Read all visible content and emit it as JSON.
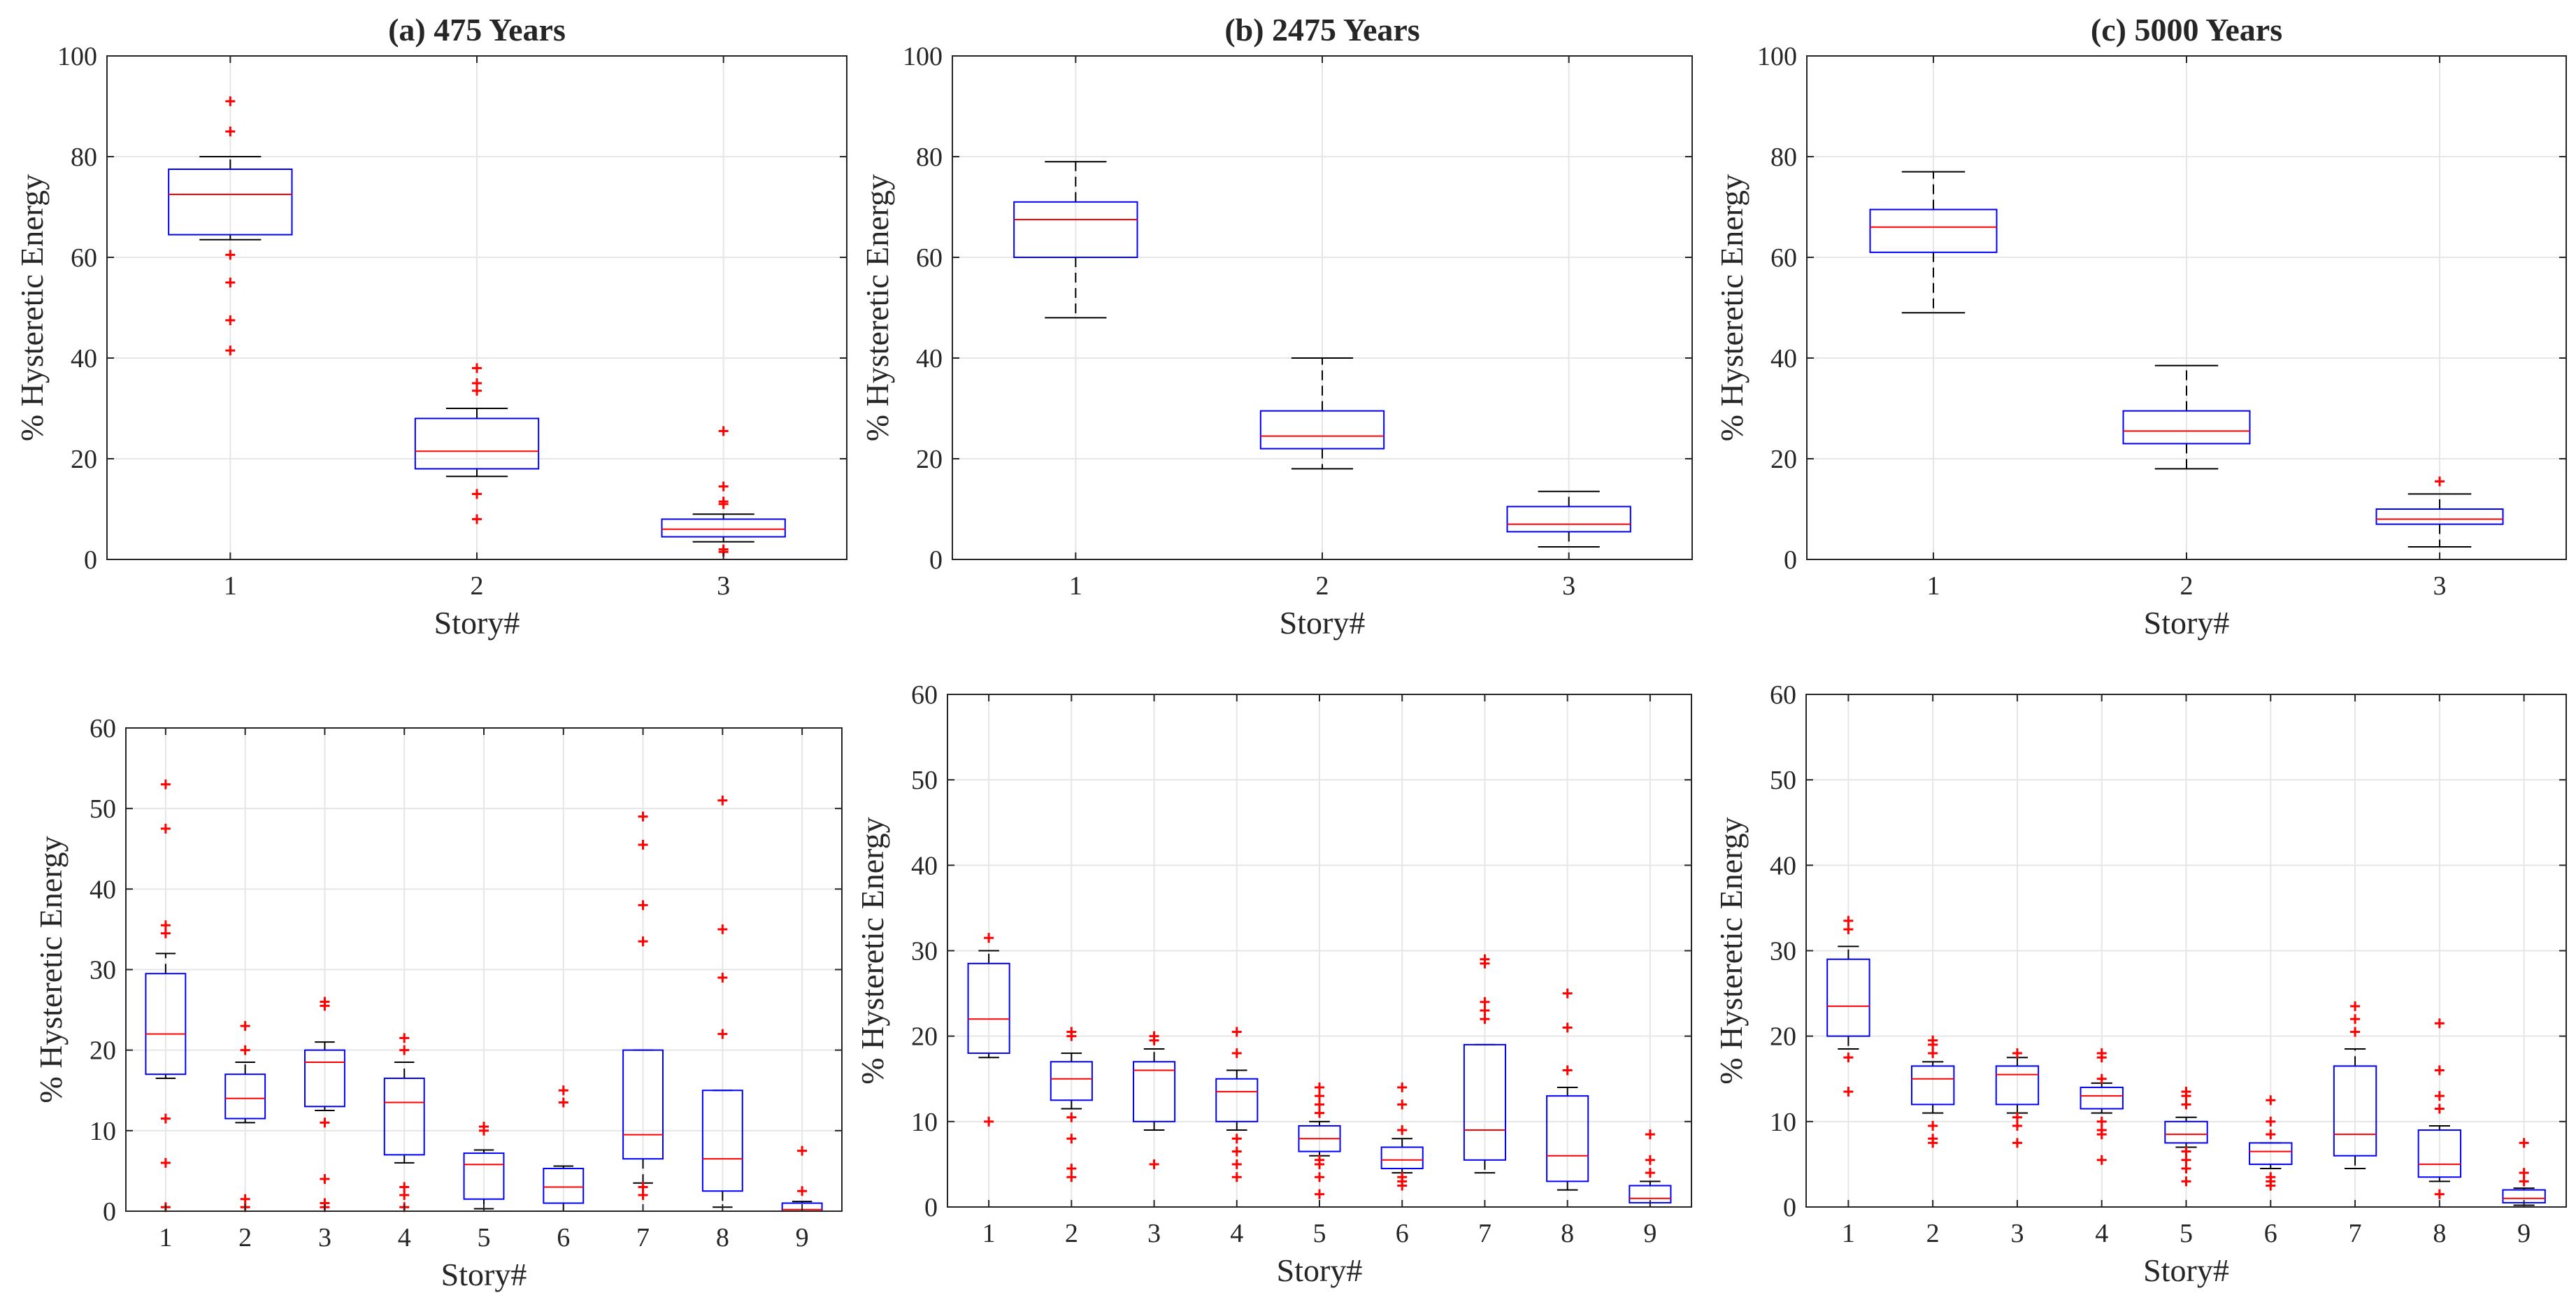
{
  "charts": [
    {
      "title": "(a) 475 Years",
      "xlabel": "Story#",
      "ylabel": "% Hysteretic Energy",
      "ylim": [
        0,
        100
      ],
      "yticks": [
        0,
        20,
        40,
        60,
        80,
        100
      ],
      "categories": [
        "1",
        "2",
        "3"
      ],
      "boxes": [
        {
          "q1": 64.5,
          "median": 72.5,
          "q3": 77.5,
          "wlo": 63.5,
          "whi": 80,
          "outliers": [
            41.5,
            47.5,
            55,
            60.5,
            85,
            91
          ]
        },
        {
          "q1": 18,
          "median": 21.5,
          "q3": 28,
          "wlo": 16.5,
          "whi": 30,
          "outliers": [
            8,
            13,
            33.5,
            35,
            38
          ]
        },
        {
          "q1": 4.5,
          "median": 6,
          "q3": 8,
          "wlo": 3.5,
          "whi": 9,
          "outliers": [
            1.5,
            2,
            11,
            11.5,
            14.5,
            25.5
          ]
        }
      ]
    },
    {
      "title": "(b) 2475 Years",
      "xlabel": "Story#",
      "ylabel": "% Hysteretic Energy",
      "ylim": [
        0,
        100
      ],
      "yticks": [
        0,
        20,
        40,
        60,
        80,
        100
      ],
      "categories": [
        "1",
        "2",
        "3"
      ],
      "boxes": [
        {
          "q1": 60,
          "median": 67.5,
          "q3": 71,
          "wlo": 48,
          "whi": 79,
          "outliers": []
        },
        {
          "q1": 22,
          "median": 24.5,
          "q3": 29.5,
          "wlo": 18,
          "whi": 40,
          "outliers": []
        },
        {
          "q1": 5.5,
          "median": 7,
          "q3": 10.5,
          "wlo": 2.5,
          "whi": 13.5,
          "outliers": []
        }
      ]
    },
    {
      "title": "(c) 5000 Years",
      "xlabel": "Story#",
      "ylabel": "% Hysteretic Energy",
      "ylim": [
        0,
        100
      ],
      "yticks": [
        0,
        20,
        40,
        60,
        80,
        100
      ],
      "categories": [
        "1",
        "2",
        "3"
      ],
      "boxes": [
        {
          "q1": 61,
          "median": 66,
          "q3": 69.5,
          "wlo": 49,
          "whi": 77,
          "outliers": []
        },
        {
          "q1": 23,
          "median": 25.5,
          "q3": 29.5,
          "wlo": 18,
          "whi": 38.5,
          "outliers": []
        },
        {
          "q1": 7,
          "median": 8,
          "q3": 10,
          "wlo": 2.5,
          "whi": 13,
          "outliers": [
            15.5
          ]
        }
      ]
    },
    {
      "title": "",
      "xlabel": "Story#",
      "ylabel": "% Hysteretic Energy",
      "ylim": [
        0,
        60
      ],
      "yticks": [
        0,
        10,
        20,
        30,
        40,
        50,
        60
      ],
      "categories": [
        "1",
        "2",
        "3",
        "4",
        "5",
        "6",
        "7",
        "8",
        "9"
      ],
      "boxes": [
        {
          "q1": 17,
          "median": 22,
          "q3": 29.5,
          "wlo": 16.5,
          "whi": 32,
          "outliers": [
            0.5,
            6,
            11.5,
            34.5,
            35.5,
            47.5,
            53
          ]
        },
        {
          "q1": 11.5,
          "median": 14,
          "q3": 17,
          "wlo": 11,
          "whi": 18.5,
          "outliers": [
            0.5,
            1.5,
            20,
            23
          ]
        },
        {
          "q1": 13,
          "median": 18.5,
          "q3": 20,
          "wlo": 12.5,
          "whi": 21,
          "outliers": [
            0.5,
            1,
            4,
            11,
            25.5,
            26
          ]
        },
        {
          "q1": 7,
          "median": 13.5,
          "q3": 16.5,
          "wlo": 6,
          "whi": 18.5,
          "outliers": [
            0.5,
            2,
            3,
            20,
            21.5
          ]
        },
        {
          "q1": 1.5,
          "median": 5.8,
          "q3": 7.2,
          "wlo": 0.3,
          "whi": 7.6,
          "outliers": [
            10,
            10.5
          ]
        },
        {
          "q1": 1,
          "median": 3,
          "q3": 5.3,
          "wlo": 0,
          "whi": 5.6,
          "outliers": [
            13.5,
            15
          ]
        },
        {
          "q1": 6.5,
          "median": 9.5,
          "q3": 20,
          "wlo": 3.5,
          "whi": 20,
          "outliers": [
            2,
            3,
            33.5,
            38,
            45.5,
            49
          ]
        },
        {
          "q1": 2.5,
          "median": 6.5,
          "q3": 15,
          "wlo": 0.5,
          "whi": 15,
          "outliers": [
            22,
            29,
            35,
            51
          ]
        },
        {
          "q1": 0,
          "median": 0.2,
          "q3": 1,
          "wlo": 0,
          "whi": 1.2,
          "outliers": [
            2.5,
            7.5
          ]
        }
      ]
    },
    {
      "title": "",
      "xlabel": "Story#",
      "ylabel": "% Hysteretic Energy",
      "ylim": [
        0,
        60
      ],
      "yticks": [
        0,
        10,
        20,
        30,
        40,
        50,
        60
      ],
      "categories": [
        "1",
        "2",
        "3",
        "4",
        "5",
        "6",
        "7",
        "8",
        "9"
      ],
      "boxes": [
        {
          "q1": 18,
          "median": 22,
          "q3": 28.5,
          "wlo": 17.5,
          "whi": 30,
          "outliers": [
            10,
            31.5
          ]
        },
        {
          "q1": 12.5,
          "median": 15,
          "q3": 17,
          "wlo": 11.5,
          "whi": 18,
          "outliers": [
            3.5,
            4.5,
            8,
            10.5,
            20,
            20.5
          ]
        },
        {
          "q1": 10,
          "median": 16,
          "q3": 17,
          "wlo": 9,
          "whi": 18.5,
          "outliers": [
            5,
            19.5,
            20
          ]
        },
        {
          "q1": 10,
          "median": 13.5,
          "q3": 15,
          "wlo": 9,
          "whi": 16,
          "outliers": [
            3.5,
            5,
            6.5,
            8,
            18,
            20.5
          ]
        },
        {
          "q1": 6.5,
          "median": 8,
          "q3": 9.5,
          "wlo": 6,
          "whi": 10,
          "outliers": [
            1.5,
            3.5,
            5,
            5.5,
            11,
            12,
            13,
            14
          ]
        },
        {
          "q1": 4.5,
          "median": 5.5,
          "q3": 7,
          "wlo": 4,
          "whi": 8,
          "outliers": [
            2.5,
            3,
            3.5,
            9,
            12,
            14
          ]
        },
        {
          "q1": 5.5,
          "median": 9,
          "q3": 19,
          "wlo": 4,
          "whi": 19,
          "outliers": [
            22,
            23,
            24,
            28.5,
            29
          ]
        },
        {
          "q1": 3,
          "median": 6,
          "q3": 13,
          "wlo": 2,
          "whi": 14,
          "outliers": [
            16,
            21,
            25
          ]
        },
        {
          "q1": 0.5,
          "median": 1,
          "q3": 2.5,
          "wlo": 0,
          "whi": 3,
          "outliers": [
            4,
            5.5,
            8.5
          ]
        }
      ]
    },
    {
      "title": "",
      "xlabel": "Story#",
      "ylabel": "% Hysteretic Energy",
      "ylim": [
        0,
        60
      ],
      "yticks": [
        0,
        10,
        20,
        30,
        40,
        50,
        60
      ],
      "categories": [
        "1",
        "2",
        "3",
        "4",
        "5",
        "6",
        "7",
        "8",
        "9"
      ],
      "boxes": [
        {
          "q1": 20,
          "median": 23.5,
          "q3": 29,
          "wlo": 18.5,
          "whi": 30.5,
          "outliers": [
            13.5,
            17.5,
            32.5,
            33.5
          ]
        },
        {
          "q1": 12,
          "median": 15,
          "q3": 16.5,
          "wlo": 11,
          "whi": 17,
          "outliers": [
            7.5,
            8,
            9.5,
            18,
            19,
            19.5
          ]
        },
        {
          "q1": 12,
          "median": 15.5,
          "q3": 16.5,
          "wlo": 11,
          "whi": 17.5,
          "outliers": [
            7.5,
            9.5,
            10.5,
            18
          ]
        },
        {
          "q1": 11.5,
          "median": 13,
          "q3": 14,
          "wlo": 11,
          "whi": 14.5,
          "outliers": [
            5.5,
            8.5,
            9,
            10,
            15,
            17.5,
            18
          ]
        },
        {
          "q1": 7.5,
          "median": 8.5,
          "q3": 10,
          "wlo": 7,
          "whi": 10.5,
          "outliers": [
            3,
            4.5,
            5.5,
            6.5,
            12,
            13,
            13.5
          ]
        },
        {
          "q1": 5,
          "median": 6.5,
          "q3": 7.5,
          "wlo": 4.5,
          "whi": 7.5,
          "outliers": [
            2.5,
            3,
            3.5,
            8.5,
            10,
            12.5
          ]
        },
        {
          "q1": 6,
          "median": 8.5,
          "q3": 16.5,
          "wlo": 4.5,
          "whi": 18.5,
          "outliers": [
            20.5,
            22,
            23.5
          ]
        },
        {
          "q1": 3.5,
          "median": 5,
          "q3": 9,
          "wlo": 3,
          "whi": 9.5,
          "outliers": [
            1.5,
            11.5,
            13,
            16,
            21.5
          ]
        },
        {
          "q1": 0.5,
          "median": 1,
          "q3": 2,
          "wlo": 0.2,
          "whi": 2.2,
          "outliers": [
            3,
            4,
            7.5
          ]
        }
      ]
    }
  ]
}
